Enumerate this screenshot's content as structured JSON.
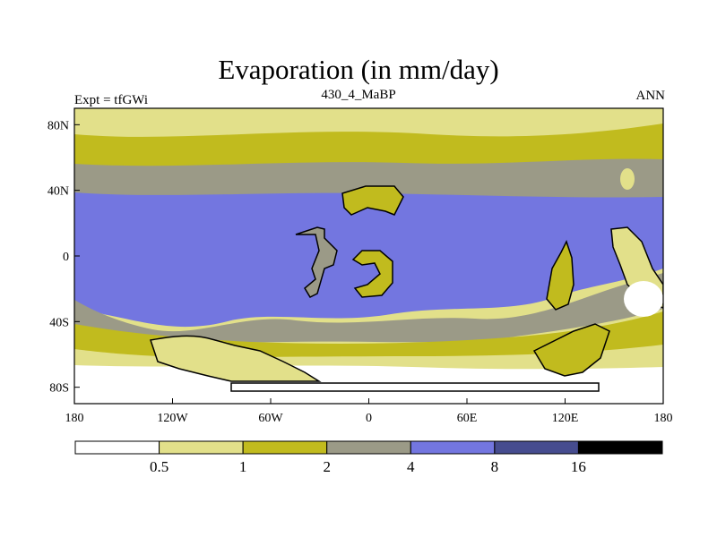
{
  "title": "Evaporation (in mm/day)",
  "left_label": "Expt = tfGWi",
  "center_label": "430_4_MaBP",
  "right_label": "ANN",
  "colors": {
    "lt05": "#ffffff",
    "c05_1": "#e2e08a",
    "c1_2": "#c1bb1e",
    "c2_4": "#9b9a87",
    "c4_8": "#7376e0",
    "c8_16": "#464c8f",
    "gt16": "#000000"
  },
  "map": {
    "lon_range": [
      -180,
      180
    ],
    "lat_range": [
      -90,
      90
    ],
    "x_ticks": [
      {
        "value": -180,
        "label": "180"
      },
      {
        "value": -120,
        "label": "120W"
      },
      {
        "value": -60,
        "label": "60W"
      },
      {
        "value": 0,
        "label": "0"
      },
      {
        "value": 60,
        "label": "60E"
      },
      {
        "value": 120,
        "label": "120E"
      },
      {
        "value": 180,
        "label": "180"
      }
    ],
    "y_ticks": [
      {
        "value": 80,
        "label": "80N"
      },
      {
        "value": 40,
        "label": "40N"
      },
      {
        "value": 0,
        "label": "0"
      },
      {
        "value": -40,
        "label": "40S"
      },
      {
        "value": -80,
        "label": "80S"
      }
    ]
  },
  "colorbar": {
    "levels": [
      "0.5",
      "1",
      "2",
      "4",
      "8",
      "16"
    ]
  }
}
